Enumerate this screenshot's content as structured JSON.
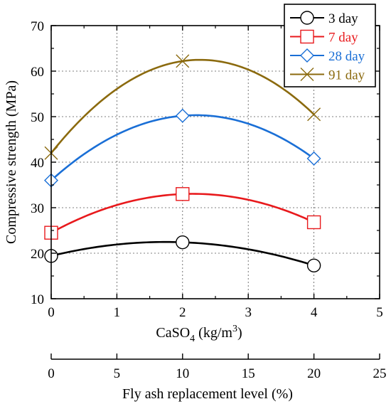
{
  "chart_data": {
    "type": "line",
    "title": "",
    "xlabel": "CaSO",
    "xlabel_subscript": "4",
    "xlabel_unit": " (kg/m",
    "xlabel_unit_sup": "3",
    "xlabel_close": ")",
    "ylabel": "Compressive strength (MPa)",
    "xlim": [
      0,
      5
    ],
    "ylim": [
      10,
      70
    ],
    "xticks": [
      "0",
      "1",
      "2",
      "3",
      "4",
      "5"
    ],
    "yticks": [
      "10",
      "20",
      "30",
      "40",
      "50",
      "60",
      "70"
    ],
    "secondary_x": {
      "label": "Fly ash replacement level (%)",
      "lim": [
        0,
        25
      ],
      "ticks": [
        "0",
        "5",
        "10",
        "15",
        "20",
        "25"
      ]
    },
    "grid": true,
    "legend_position": "top-right",
    "x": [
      0,
      2,
      4
    ],
    "series": [
      {
        "name": "3 day",
        "values": [
          19.4,
          22.4,
          17.3
        ],
        "color": "#000000",
        "marker": "circle"
      },
      {
        "name": "7 day",
        "values": [
          24.5,
          33.0,
          26.8
        ],
        "color": "#e8191c",
        "marker": "square"
      },
      {
        "name": "28 day",
        "values": [
          36.0,
          50.2,
          40.8
        ],
        "color": "#1a6fd6",
        "marker": "diamond"
      },
      {
        "name": "91 day",
        "values": [
          42.0,
          62.2,
          50.5
        ],
        "color": "#8b6a0e",
        "marker": "x"
      }
    ]
  }
}
